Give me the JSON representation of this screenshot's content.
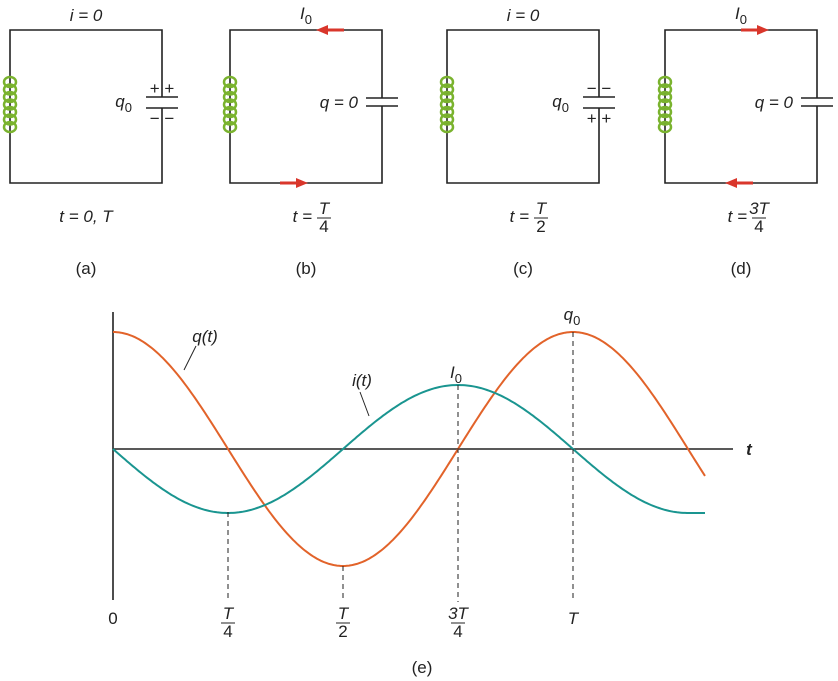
{
  "panels": [
    {
      "top_label": "i = 0",
      "charge_label": {
        "symbol": "q",
        "subscript": "0"
      },
      "plate_top": "+ +",
      "plate_bottom": "− −",
      "time": {
        "prefix": "t = 0, T"
      },
      "caption": "(a)"
    },
    {
      "top_label": {
        "symbol": "I",
        "subscript": "0"
      },
      "charge_label": "q = 0",
      "time": {
        "prefix": "t =",
        "numerator": "T",
        "denominator": "4"
      },
      "caption": "(b)"
    },
    {
      "top_label": "i = 0",
      "charge_label": {
        "symbol": "q",
        "subscript": "0"
      },
      "plate_top": "− −",
      "plate_bottom": "+ +",
      "time": {
        "prefix": "t =",
        "numerator": "T",
        "denominator": "2"
      },
      "caption": "(c)"
    },
    {
      "top_label": {
        "symbol": "I",
        "subscript": "0"
      },
      "charge_label": "q = 0",
      "time": {
        "prefix": "t =",
        "numerator": "3T",
        "denominator": "4"
      },
      "caption": "(d)"
    }
  ],
  "graph": {
    "q_label": "q(t)",
    "i_label": "i(t)",
    "i_peak": {
      "symbol": "I",
      "subscript": "0"
    },
    "q_peak": {
      "symbol": "q",
      "subscript": "0"
    },
    "axis_label": "t",
    "ticks": [
      {
        "label": "0"
      },
      {
        "numerator": "T",
        "denominator": "4"
      },
      {
        "numerator": "T",
        "denominator": "2"
      },
      {
        "numerator": "3T",
        "denominator": "4"
      },
      {
        "label": "T"
      }
    ],
    "caption": "(e)"
  }
}
